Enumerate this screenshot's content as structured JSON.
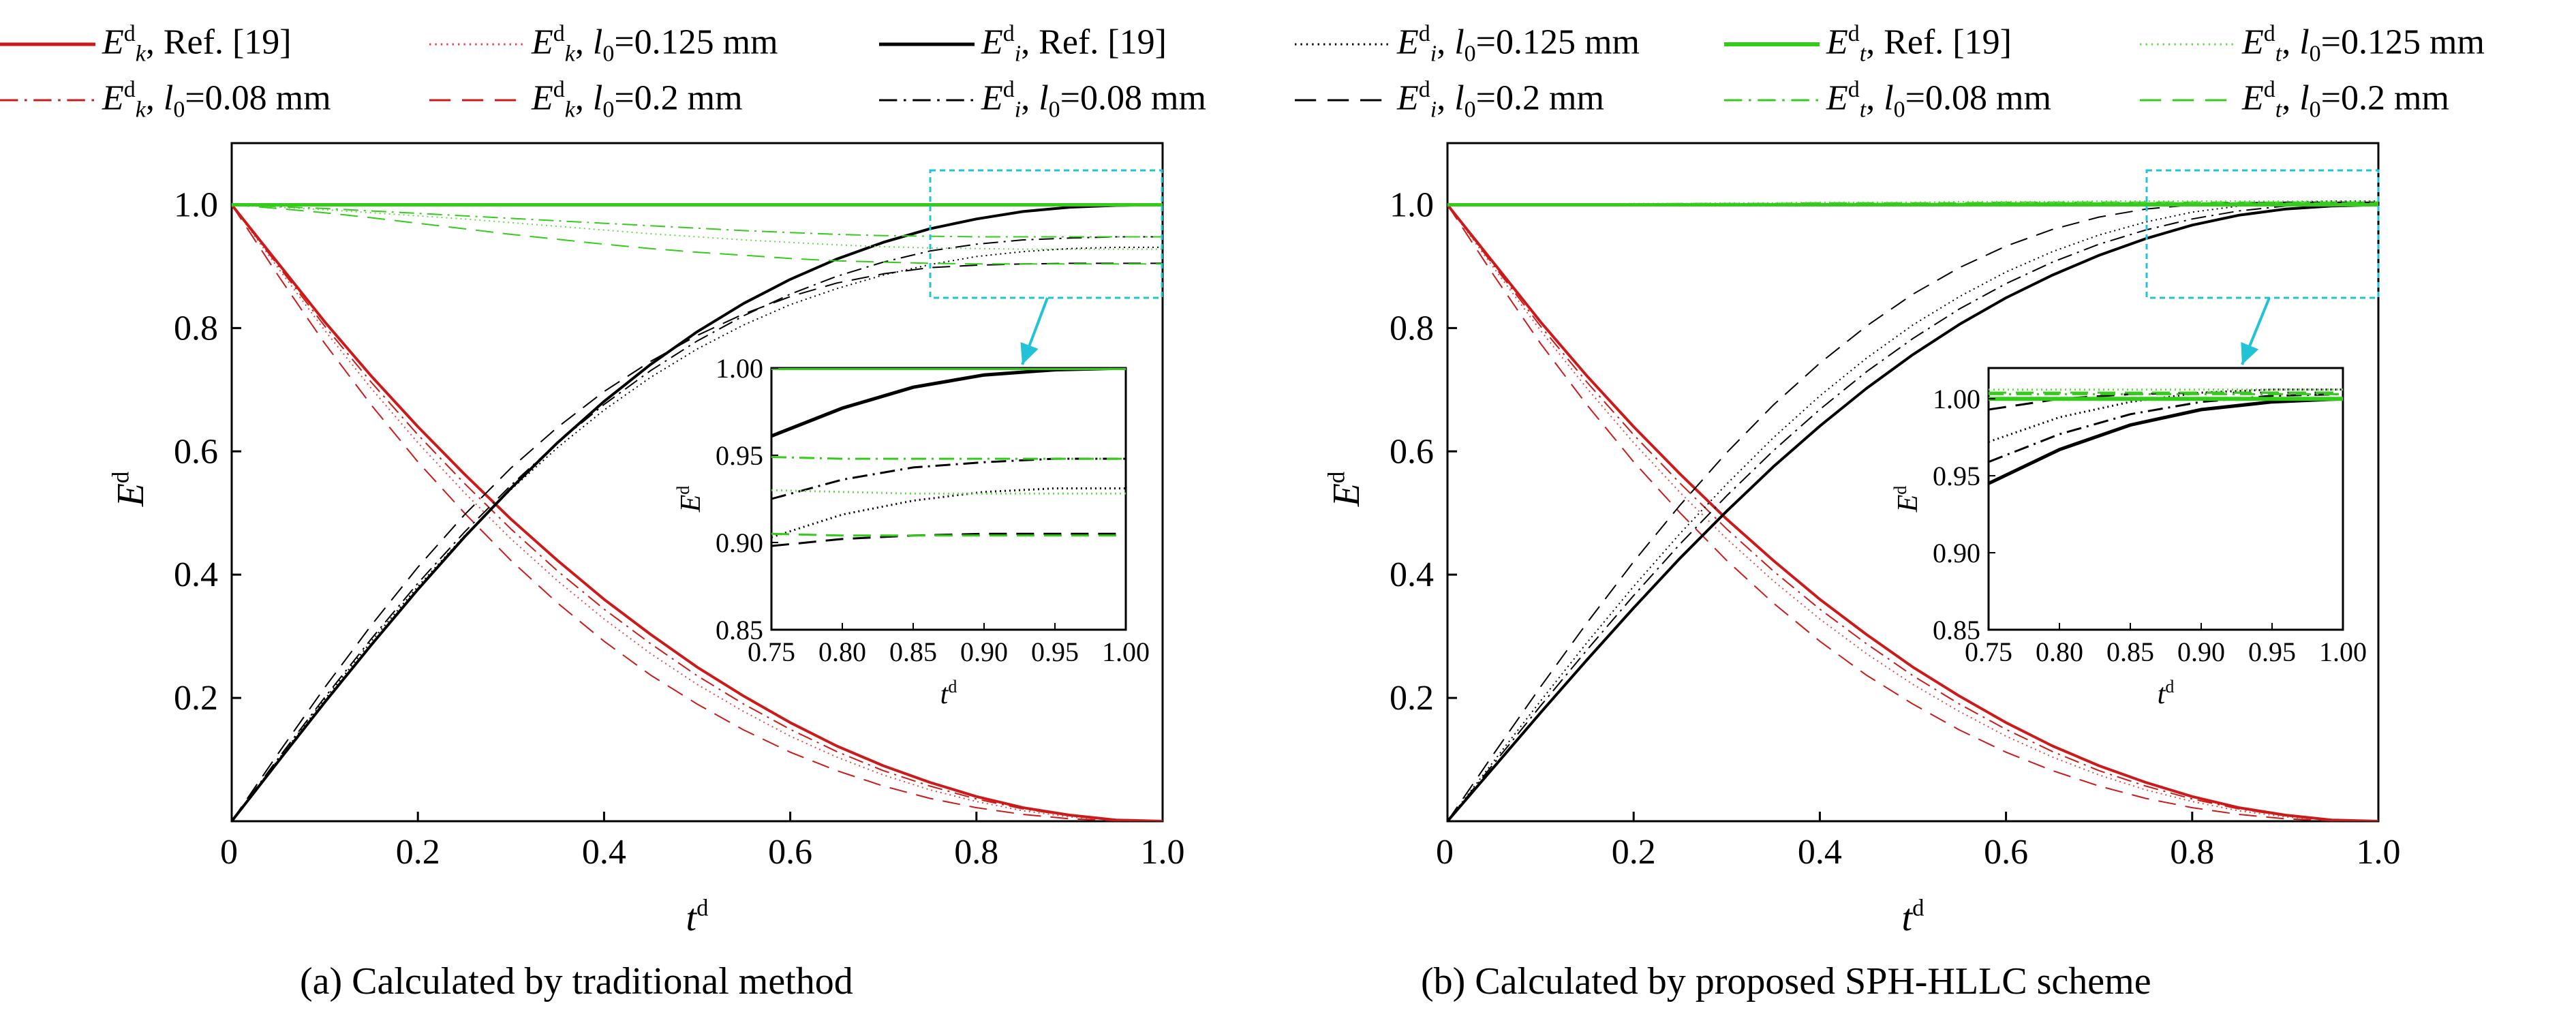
{
  "colors": {
    "red": "#cc1a1a",
    "red_light": "#e04848",
    "black": "#000000",
    "green": "#33cc1a",
    "green_light": "#66d94d",
    "highlight_box": "#22c3d6"
  },
  "legend": [
    {
      "id": "ek-ref",
      "sym": "E",
      "sub": "k",
      "suffix": ", Ref. [19]",
      "color": "#cc1a1a",
      "style": "solid",
      "width": 4
    },
    {
      "id": "ek-0125",
      "sym": "E",
      "sub": "k",
      "suffix": ", l0=0.125 mm",
      "color": "#e04848",
      "style": "dotted",
      "width": 2
    },
    {
      "id": "ei-ref",
      "sym": "E",
      "sub": "i",
      "suffix": ", Ref. [19]",
      "color": "#000000",
      "style": "solid",
      "width": 4
    },
    {
      "id": "ei-0125",
      "sym": "E",
      "sub": "i",
      "suffix": ", l0=0.125 mm",
      "color": "#000000",
      "style": "dotted",
      "width": 2
    },
    {
      "id": "et-ref",
      "sym": "E",
      "sub": "t",
      "suffix": ", Ref. [19]",
      "color": "#33cc1a",
      "style": "solid",
      "width": 5
    },
    {
      "id": "et-0125",
      "sym": "E",
      "sub": "t",
      "suffix": ", l0=0.125 mm",
      "color": "#66d94d",
      "style": "dotted",
      "width": 2
    },
    {
      "id": "ek-008",
      "sym": "E",
      "sub": "k",
      "suffix": ", l0=0.08 mm",
      "color": "#cc1a1a",
      "style": "dashdot",
      "width": 2
    },
    {
      "id": "ek-02",
      "sym": "E",
      "sub": "k",
      "suffix": ", l0=0.2 mm",
      "color": "#cc1a1a",
      "style": "dashed",
      "width": 2
    },
    {
      "id": "ei-008",
      "sym": "E",
      "sub": "i",
      "suffix": ", l0=0.08 mm",
      "color": "#000000",
      "style": "dashdot",
      "width": 2
    },
    {
      "id": "ei-02",
      "sym": "E",
      "sub": "i",
      "suffix": ", l0=0.2 mm",
      "color": "#000000",
      "style": "dashed",
      "width": 2
    },
    {
      "id": "et-008",
      "sym": "E",
      "sub": "t",
      "suffix": ", l0=0.08 mm",
      "color": "#33cc1a",
      "style": "dashdot",
      "width": 2
    },
    {
      "id": "et-02",
      "sym": "E",
      "sub": "t",
      "suffix": ", l0=0.2 mm",
      "color": "#33cc1a",
      "style": "dashed",
      "width": 2
    }
  ],
  "chart_data": [
    {
      "type": "line",
      "panel": "a",
      "caption": "(a) Calculated by traditional method",
      "xlabel": "t^d",
      "ylabel": "E^d",
      "xlim": [
        0,
        1.0
      ],
      "ylim": [
        0,
        1.1
      ],
      "xticks": [
        "0",
        "0.2",
        "0.4",
        "0.6",
        "0.8",
        "1.0"
      ],
      "yticks": [
        "0.2",
        "0.4",
        "0.6",
        "0.8",
        "1.0"
      ],
      "x": [
        0,
        0.05,
        0.1,
        0.15,
        0.2,
        0.25,
        0.3,
        0.35,
        0.4,
        0.45,
        0.5,
        0.55,
        0.6,
        0.65,
        0.7,
        0.75,
        0.8,
        0.85,
        0.9,
        0.95,
        1.0
      ],
      "series": [
        {
          "id": "ek-ref",
          "values": [
            1.0,
            0.905,
            0.81,
            0.722,
            0.64,
            0.563,
            0.49,
            0.423,
            0.36,
            0.303,
            0.25,
            0.203,
            0.16,
            0.122,
            0.09,
            0.063,
            0.04,
            0.022,
            0.01,
            0.002,
            0.0
          ]
        },
        {
          "id": "ek-0125",
          "values": [
            1.0,
            0.897,
            0.796,
            0.702,
            0.614,
            0.533,
            0.458,
            0.39,
            0.328,
            0.272,
            0.222,
            0.178,
            0.138,
            0.104,
            0.075,
            0.051,
            0.032,
            0.017,
            0.007,
            0.002,
            0.0
          ]
        },
        {
          "id": "ek-008",
          "values": [
            1.0,
            0.901,
            0.803,
            0.712,
            0.627,
            0.548,
            0.474,
            0.406,
            0.344,
            0.288,
            0.236,
            0.19,
            0.149,
            0.113,
            0.082,
            0.057,
            0.036,
            0.02,
            0.009,
            0.002,
            0.0
          ]
        },
        {
          "id": "ek-02",
          "values": [
            1.0,
            0.885,
            0.775,
            0.675,
            0.583,
            0.5,
            0.423,
            0.354,
            0.292,
            0.237,
            0.19,
            0.148,
            0.112,
            0.082,
            0.057,
            0.037,
            0.022,
            0.011,
            0.004,
            0.001,
            0.0
          ]
        },
        {
          "id": "ei-ref",
          "values": [
            0.0,
            0.097,
            0.193,
            0.286,
            0.376,
            0.461,
            0.54,
            0.614,
            0.681,
            0.741,
            0.794,
            0.84,
            0.879,
            0.912,
            0.939,
            0.961,
            0.977,
            0.989,
            0.996,
            0.999,
            1.0
          ]
        },
        {
          "id": "ei-0125",
          "values": [
            0.0,
            0.1,
            0.198,
            0.292,
            0.381,
            0.463,
            0.538,
            0.606,
            0.667,
            0.72,
            0.766,
            0.805,
            0.838,
            0.864,
            0.886,
            0.903,
            0.916,
            0.924,
            0.929,
            0.931,
            0.931
          ]
        },
        {
          "id": "ei-008",
          "values": [
            0.0,
            0.102,
            0.201,
            0.296,
            0.386,
            0.469,
            0.545,
            0.614,
            0.676,
            0.731,
            0.779,
            0.82,
            0.855,
            0.884,
            0.907,
            0.925,
            0.936,
            0.943,
            0.946,
            0.948,
            0.948
          ]
        },
        {
          "id": "ei-02",
          "values": [
            0.0,
            0.11,
            0.217,
            0.318,
            0.412,
            0.497,
            0.573,
            0.639,
            0.697,
            0.746,
            0.788,
            0.823,
            0.851,
            0.873,
            0.888,
            0.898,
            0.902,
            0.904,
            0.905,
            0.905,
            0.905
          ]
        },
        {
          "id": "et-ref",
          "values": [
            1.0,
            1.0,
            1.0,
            1.0,
            1.0,
            1.0,
            1.0,
            1.0,
            1.0,
            1.0,
            1.0,
            1.0,
            1.0,
            1.0,
            1.0,
            1.0,
            1.0,
            1.0,
            1.0,
            1.0,
            1.0
          ]
        },
        {
          "id": "et-0125",
          "values": [
            1.0,
            0.996,
            0.992,
            0.987,
            0.982,
            0.977,
            0.971,
            0.965,
            0.959,
            0.953,
            0.948,
            0.943,
            0.939,
            0.935,
            0.932,
            0.93,
            0.929,
            0.928,
            0.928,
            0.928,
            0.928
          ]
        },
        {
          "id": "et-008",
          "values": [
            1.0,
            0.997,
            0.994,
            0.99,
            0.986,
            0.982,
            0.978,
            0.974,
            0.97,
            0.966,
            0.962,
            0.958,
            0.955,
            0.952,
            0.95,
            0.949,
            0.948,
            0.948,
            0.948,
            0.948,
            0.948
          ]
        },
        {
          "id": "et-02",
          "values": [
            1.0,
            0.994,
            0.987,
            0.979,
            0.97,
            0.961,
            0.952,
            0.944,
            0.936,
            0.929,
            0.923,
            0.918,
            0.913,
            0.909,
            0.907,
            0.905,
            0.904,
            0.904,
            0.904,
            0.904,
            0.904
          ]
        }
      ],
      "inset": {
        "xlim": [
          0.75,
          1.0
        ],
        "ylim": [
          0.85,
          1.0
        ],
        "xticks": [
          "0.75",
          "0.80",
          "0.85",
          "0.90",
          "0.95",
          "1.00"
        ],
        "yticks": [
          "0.85",
          "0.90",
          "0.95",
          "1.00"
        ],
        "xlabel": "t^d",
        "ylabel": "E^d"
      }
    },
    {
      "type": "line",
      "panel": "b",
      "caption": "(b) Calculated by proposed SPH-HLLC scheme",
      "xlabel": "t^d",
      "ylabel": "E^d",
      "xlim": [
        0,
        1.0
      ],
      "ylim": [
        0,
        1.1
      ],
      "xticks": [
        "0",
        "0.2",
        "0.4",
        "0.6",
        "0.8",
        "1.0"
      ],
      "yticks": [
        "0.2",
        "0.4",
        "0.6",
        "0.8",
        "1.0"
      ],
      "x": [
        0,
        0.05,
        0.1,
        0.15,
        0.2,
        0.25,
        0.3,
        0.35,
        0.4,
        0.45,
        0.5,
        0.55,
        0.6,
        0.65,
        0.7,
        0.75,
        0.8,
        0.85,
        0.9,
        0.95,
        1.0
      ],
      "series": [
        {
          "id": "ek-ref",
          "values": [
            1.0,
            0.905,
            0.81,
            0.722,
            0.64,
            0.563,
            0.49,
            0.423,
            0.36,
            0.303,
            0.25,
            0.203,
            0.16,
            0.122,
            0.09,
            0.063,
            0.04,
            0.022,
            0.01,
            0.002,
            0.0
          ]
        },
        {
          "id": "ek-0125",
          "values": [
            1.0,
            0.897,
            0.796,
            0.702,
            0.614,
            0.533,
            0.458,
            0.39,
            0.328,
            0.272,
            0.222,
            0.178,
            0.138,
            0.104,
            0.075,
            0.051,
            0.032,
            0.017,
            0.007,
            0.002,
            0.0
          ]
        },
        {
          "id": "ek-008",
          "values": [
            1.0,
            0.901,
            0.803,
            0.712,
            0.627,
            0.548,
            0.474,
            0.406,
            0.344,
            0.288,
            0.236,
            0.19,
            0.149,
            0.113,
            0.082,
            0.057,
            0.036,
            0.02,
            0.009,
            0.002,
            0.0
          ]
        },
        {
          "id": "ek-02",
          "values": [
            1.0,
            0.885,
            0.775,
            0.675,
            0.583,
            0.5,
            0.423,
            0.354,
            0.292,
            0.237,
            0.19,
            0.148,
            0.112,
            0.082,
            0.057,
            0.037,
            0.022,
            0.011,
            0.004,
            0.001,
            0.0
          ]
        },
        {
          "id": "ei-ref",
          "values": [
            0.0,
            0.088,
            0.176,
            0.262,
            0.346,
            0.427,
            0.503,
            0.575,
            0.641,
            0.702,
            0.757,
            0.806,
            0.849,
            0.886,
            0.918,
            0.945,
            0.967,
            0.983,
            0.993,
            0.998,
            1.0
          ]
        },
        {
          "id": "ei-0125",
          "values": [
            0.0,
            0.098,
            0.195,
            0.29,
            0.381,
            0.467,
            0.547,
            0.622,
            0.69,
            0.751,
            0.805,
            0.851,
            0.891,
            0.924,
            0.951,
            0.972,
            0.988,
            0.998,
            1.004,
            1.006,
            1.006
          ]
        },
        {
          "id": "ei-008",
          "values": [
            0.0,
            0.094,
            0.187,
            0.278,
            0.366,
            0.45,
            0.528,
            0.601,
            0.668,
            0.729,
            0.783,
            0.831,
            0.872,
            0.907,
            0.936,
            0.959,
            0.977,
            0.99,
            0.998,
            1.002,
            1.003
          ]
        },
        {
          "id": "ei-02",
          "values": [
            0.0,
            0.11,
            0.218,
            0.322,
            0.421,
            0.513,
            0.598,
            0.675,
            0.743,
            0.803,
            0.855,
            0.898,
            0.933,
            0.96,
            0.98,
            0.993,
            1.0,
            1.003,
            1.004,
            1.004,
            1.004
          ]
        },
        {
          "id": "et-ref",
          "values": [
            1.0,
            1.0,
            1.0,
            1.0,
            1.0,
            1.0,
            1.0,
            1.0,
            1.0,
            1.0,
            1.0,
            1.0,
            1.0,
            1.0,
            1.0,
            1.0,
            1.0,
            1.0,
            1.0,
            1.0,
            1.0
          ]
        },
        {
          "id": "et-0125",
          "values": [
            1.0,
            1.0,
            1.001,
            1.001,
            1.002,
            1.002,
            1.003,
            1.003,
            1.004,
            1.004,
            1.004,
            1.005,
            1.005,
            1.005,
            1.006,
            1.006,
            1.006,
            1.006,
            1.006,
            1.006,
            1.006
          ]
        },
        {
          "id": "et-008",
          "values": [
            1.0,
            1.0,
            1.0,
            1.001,
            1.001,
            1.001,
            1.001,
            1.002,
            1.002,
            1.002,
            1.002,
            1.002,
            1.003,
            1.003,
            1.003,
            1.003,
            1.003,
            1.003,
            1.003,
            1.003,
            1.003
          ]
        },
        {
          "id": "et-02",
          "values": [
            1.0,
            1.0,
            1.001,
            1.001,
            1.001,
            1.002,
            1.002,
            1.002,
            1.003,
            1.003,
            1.003,
            1.003,
            1.004,
            1.004,
            1.004,
            1.004,
            1.004,
            1.004,
            1.004,
            1.004,
            1.004
          ]
        }
      ],
      "inset": {
        "xlim": [
          0.75,
          1.0
        ],
        "ylim": [
          0.85,
          1.02
        ],
        "xticks": [
          "0.75",
          "0.80",
          "0.85",
          "0.90",
          "0.95",
          "1.00"
        ],
        "yticks": [
          "0.85",
          "0.90",
          "0.95",
          "1.00"
        ],
        "xlabel": "t^d",
        "ylabel": "E^d"
      }
    }
  ]
}
